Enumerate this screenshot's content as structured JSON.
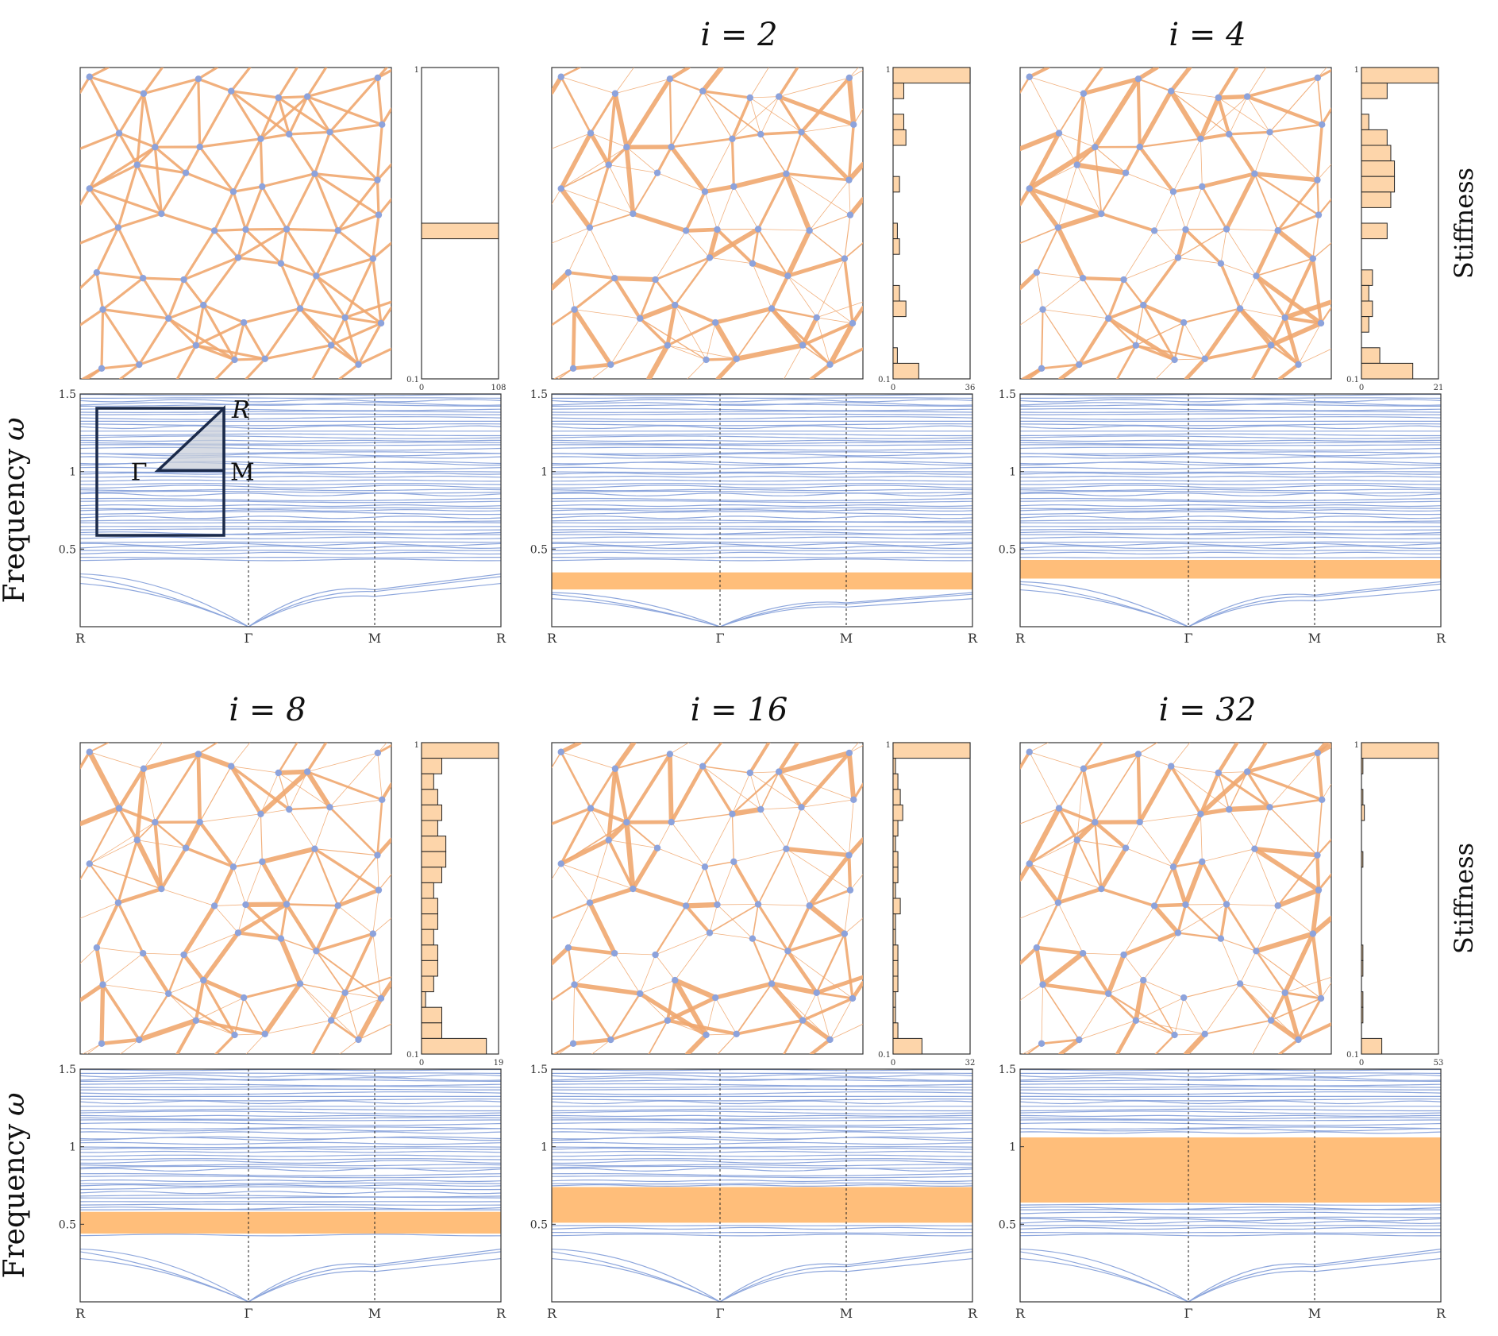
{
  "colors": {
    "edge": "#F0A870",
    "node": "#8DA3DC",
    "band": "#8DA6DC",
    "gap": "#FFBE7A",
    "hist_fill": "#FDD5AA",
    "inset_stroke": "#1B2A4A",
    "inset_fill": "#C9CFDA",
    "axis": "#333333"
  },
  "ylabel_frequency": "Frequency",
  "ylabel_omega": "ω",
  "stiffness_label": "Stiffness",
  "x_ticks": [
    "R",
    "Γ",
    "M",
    "R"
  ],
  "y_ticks": [
    "0.5",
    "1",
    "1.5"
  ],
  "inset": {
    "corner_label": "R",
    "origin_label": "Γ",
    "mid_label": "M"
  },
  "panels": [
    {
      "title": "",
      "hist": {
        "top": "1",
        "bottom": "0.1",
        "x0": "0",
        "xmax": "108"
      },
      "gap": null
    },
    {
      "title": "i = 2",
      "hist": {
        "top": "1",
        "bottom": "0.1",
        "x0": "0",
        "xmax": "36"
      },
      "gap": [
        0.24,
        0.35
      ]
    },
    {
      "title": "i = 4",
      "hist": {
        "top": "1",
        "bottom": "0.1",
        "x0": "0",
        "xmax": "21"
      },
      "gap": [
        0.31,
        0.43
      ]
    },
    {
      "title": "i = 8",
      "hist": {
        "top": "1",
        "bottom": "0.1",
        "x0": "0",
        "xmax": "19"
      },
      "gap": [
        0.44,
        0.58
      ]
    },
    {
      "title": "i = 16",
      "hist": {
        "top": "1",
        "bottom": "0.1",
        "x0": "0",
        "xmax": "32"
      },
      "gap": [
        0.51,
        0.74
      ]
    },
    {
      "title": "i = 32",
      "hist": {
        "top": "1",
        "bottom": "0.1",
        "x0": "0",
        "xmax": "53"
      },
      "gap": [
        0.64,
        1.06
      ]
    }
  ],
  "hist_counts": [
    [
      0,
      0,
      0,
      0,
      0,
      0,
      0,
      0,
      0,
      0,
      108,
      0,
      0,
      0,
      0,
      0,
      0,
      0,
      0,
      0
    ],
    [
      36,
      5,
      0,
      5,
      6,
      0,
      0,
      3,
      0,
      0,
      2,
      3,
      0,
      0,
      3,
      6,
      0,
      0,
      2,
      12
    ],
    [
      21,
      7,
      0,
      2,
      7,
      8,
      9,
      9,
      8,
      0,
      7,
      0,
      0,
      3,
      2,
      3,
      2,
      0,
      5,
      14
    ],
    [
      19,
      5,
      3,
      4,
      5,
      4,
      6,
      6,
      5,
      3,
      4,
      4,
      3,
      4,
      4,
      3,
      1,
      5,
      5,
      16
    ],
    [
      32,
      1,
      2,
      3,
      4,
      2,
      1,
      2,
      2,
      1,
      3,
      1,
      1,
      2,
      2,
      2,
      1,
      1,
      2,
      12
    ],
    [
      53,
      1,
      0,
      1,
      2,
      0,
      0,
      1,
      0,
      0,
      0,
      0,
      0,
      1,
      1,
      0,
      1,
      1,
      0,
      14
    ]
  ]
}
